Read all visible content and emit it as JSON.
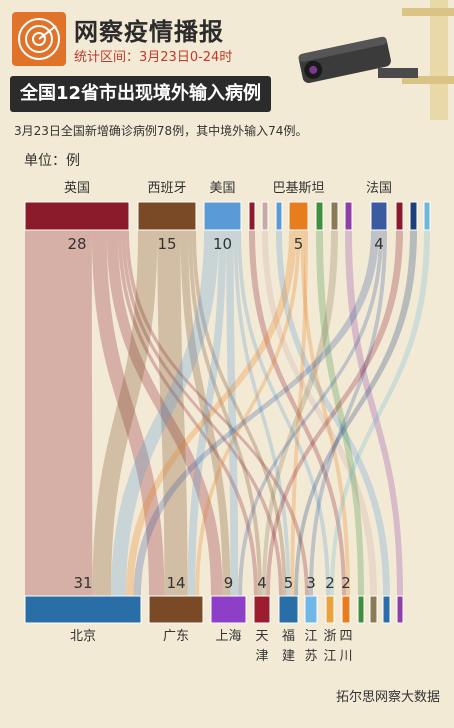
{
  "header": {
    "title": "网察疫情播报",
    "subtitle": "统计区间：3月23日0-24时",
    "headline": "全国12省市出现境外输入病例",
    "summary": "3月23日全国新增确诊病例78例，其中境外输入74例。",
    "unit": "单位：例"
  },
  "footer": {
    "source": "拓尔思网察大数据"
  },
  "icons": {
    "logo": "radar-logo-icon",
    "camera": "surveillance-camera-icon"
  },
  "chart_data": {
    "type": "sankey",
    "sources": [
      {
        "name": "英国",
        "value": 28,
        "color": "#8b1a2b"
      },
      {
        "name": "西班牙",
        "value": 15,
        "color": "#7a4a26"
      },
      {
        "name": "美国",
        "value": 10,
        "color": "#5b9bd5"
      },
      {
        "name": "",
        "value": 1,
        "color": "#8b1a2b"
      },
      {
        "name": "",
        "value": 1,
        "color": "#c9a9a6"
      },
      {
        "name": "",
        "value": 1,
        "color": "#5b9bd5"
      },
      {
        "name": "巴基斯坦",
        "value": 5,
        "color": "#e87d1e"
      },
      {
        "name": "",
        "value": 1,
        "color": "#3f8f3f"
      },
      {
        "name": "",
        "value": 1,
        "color": "#8a7a55"
      },
      {
        "name": "",
        "value": 1,
        "color": "#8e3fa8"
      },
      {
        "name": "法国",
        "value": 4,
        "color": "#3b5aa0"
      },
      {
        "name": "",
        "value": 1,
        "color": "#8b1a2b"
      },
      {
        "name": "",
        "value": 1,
        "color": "#1f3f7a"
      },
      {
        "name": "",
        "value": 1,
        "color": "#6fb7d9"
      }
    ],
    "targets": [
      {
        "name": "北京",
        "value": 31,
        "color": "#2a6ea8"
      },
      {
        "name": "广东",
        "value": 14,
        "color": "#7a4a26"
      },
      {
        "name": "上海",
        "value": 9,
        "color": "#8e3fc8"
      },
      {
        "name": "天津",
        "value": 4,
        "color": "#9c1e2e"
      },
      {
        "name": "福建",
        "value": 5,
        "color": "#2a6ea8"
      },
      {
        "name": "江苏",
        "value": 3,
        "color": "#6fb7e8"
      },
      {
        "name": "浙江",
        "value": 2,
        "color": "#e8a33d"
      },
      {
        "name": "四川",
        "value": 2,
        "color": "#e87d1e"
      },
      {
        "name": "",
        "value": 1,
        "color": "#3f8f3f"
      },
      {
        "name": "",
        "value": 1,
        "color": "#8a7a55"
      },
      {
        "name": "",
        "value": 1,
        "color": "#2a6ea8"
      },
      {
        "name": "",
        "value": 1,
        "color": "#8e3fa8"
      }
    ],
    "source_labels_shown": [
      "28",
      "15",
      "10",
      "5",
      "4"
    ],
    "target_labels_shown": [
      "31",
      "14",
      "9",
      "4",
      "5",
      "3",
      "2",
      "2"
    ]
  }
}
